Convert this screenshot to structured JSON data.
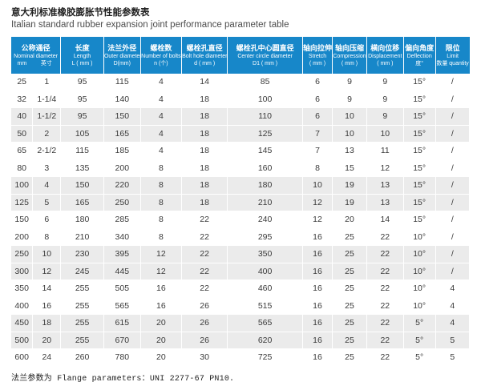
{
  "page": {
    "title_zh": "意大利标准橡胶膨胀节性能参数表",
    "title_en": "Italian standard rubber expansion joint performance parameter table",
    "footer_note": "法兰参数为 Flange parameters：UNI 2277-67 PN10."
  },
  "colors": {
    "header_bg": "#1787c9",
    "banded_row_bg": "#ebebeb",
    "header_text": "#ffffff",
    "body_text": "#3a3a3a"
  },
  "table": {
    "nominal_header": {
      "zh": "公称通径",
      "en": "Nominal diameter",
      "unit_mm": "mm",
      "unit_inch": "英寸"
    },
    "columns": [
      {
        "zh": "长度",
        "en": "Length",
        "unit": "L ( mm )"
      },
      {
        "zh": "法兰外径",
        "en": "Outer diameter",
        "unit": "D(mm)"
      },
      {
        "zh": "螺栓数",
        "en": "Number of bolts",
        "unit": "n (个)"
      },
      {
        "zh": "螺栓孔直径",
        "en": "Bolt hole diameter",
        "unit": "d ( mm )"
      },
      {
        "zh": "螺栓孔中心圆直径",
        "en": "Center circle diameter",
        "unit": "D1 ( mm )"
      },
      {
        "zh": "轴向拉伸",
        "en": "Stretch",
        "unit": "( mm )"
      },
      {
        "zh": "轴向压缩",
        "en": "Compression",
        "unit": "( mm )"
      },
      {
        "zh": "横向位移",
        "en": "Displacement",
        "unit": "( mm )"
      },
      {
        "zh": "偏向角度",
        "en": "Deflection",
        "unit": "度°"
      },
      {
        "zh": "限位",
        "en": "Limit",
        "unit": "数量 quantity"
      }
    ],
    "rows": [
      [
        "25",
        "1",
        "95",
        "115",
        "4",
        "14",
        "85",
        "6",
        "9",
        "9",
        "15°",
        "/"
      ],
      [
        "32",
        "1-1/4",
        "95",
        "140",
        "4",
        "18",
        "100",
        "6",
        "9",
        "9",
        "15°",
        "/"
      ],
      [
        "40",
        "1-1/2",
        "95",
        "150",
        "4",
        "18",
        "110",
        "6",
        "10",
        "9",
        "15°",
        "/"
      ],
      [
        "50",
        "2",
        "105",
        "165",
        "4",
        "18",
        "125",
        "7",
        "10",
        "10",
        "15°",
        "/"
      ],
      [
        "65",
        "2-1/2",
        "115",
        "185",
        "4",
        "18",
        "145",
        "7",
        "13",
        "11",
        "15°",
        "/"
      ],
      [
        "80",
        "3",
        "135",
        "200",
        "8",
        "18",
        "160",
        "8",
        "15",
        "12",
        "15°",
        "/"
      ],
      [
        "100",
        "4",
        "150",
        "220",
        "8",
        "18",
        "180",
        "10",
        "19",
        "13",
        "15°",
        "/"
      ],
      [
        "125",
        "5",
        "165",
        "250",
        "8",
        "18",
        "210",
        "12",
        "19",
        "13",
        "15°",
        "/"
      ],
      [
        "150",
        "6",
        "180",
        "285",
        "8",
        "22",
        "240",
        "12",
        "20",
        "14",
        "15°",
        "/"
      ],
      [
        "200",
        "8",
        "210",
        "340",
        "8",
        "22",
        "295",
        "16",
        "25",
        "22",
        "10°",
        "/"
      ],
      [
        "250",
        "10",
        "230",
        "395",
        "12",
        "22",
        "350",
        "16",
        "25",
        "22",
        "10°",
        "/"
      ],
      [
        "300",
        "12",
        "245",
        "445",
        "12",
        "22",
        "400",
        "16",
        "25",
        "22",
        "10°",
        "/"
      ],
      [
        "350",
        "14",
        "255",
        "505",
        "16",
        "22",
        "460",
        "16",
        "25",
        "22",
        "10°",
        "4"
      ],
      [
        "400",
        "16",
        "255",
        "565",
        "16",
        "26",
        "515",
        "16",
        "25",
        "22",
        "10°",
        "4"
      ],
      [
        "450",
        "18",
        "255",
        "615",
        "20",
        "26",
        "565",
        "16",
        "25",
        "22",
        "5°",
        "4"
      ],
      [
        "500",
        "20",
        "255",
        "670",
        "20",
        "26",
        "620",
        "16",
        "25",
        "22",
        "5°",
        "5"
      ],
      [
        "600",
        "24",
        "260",
        "780",
        "20",
        "30",
        "725",
        "16",
        "25",
        "22",
        "5°",
        "5"
      ]
    ]
  }
}
